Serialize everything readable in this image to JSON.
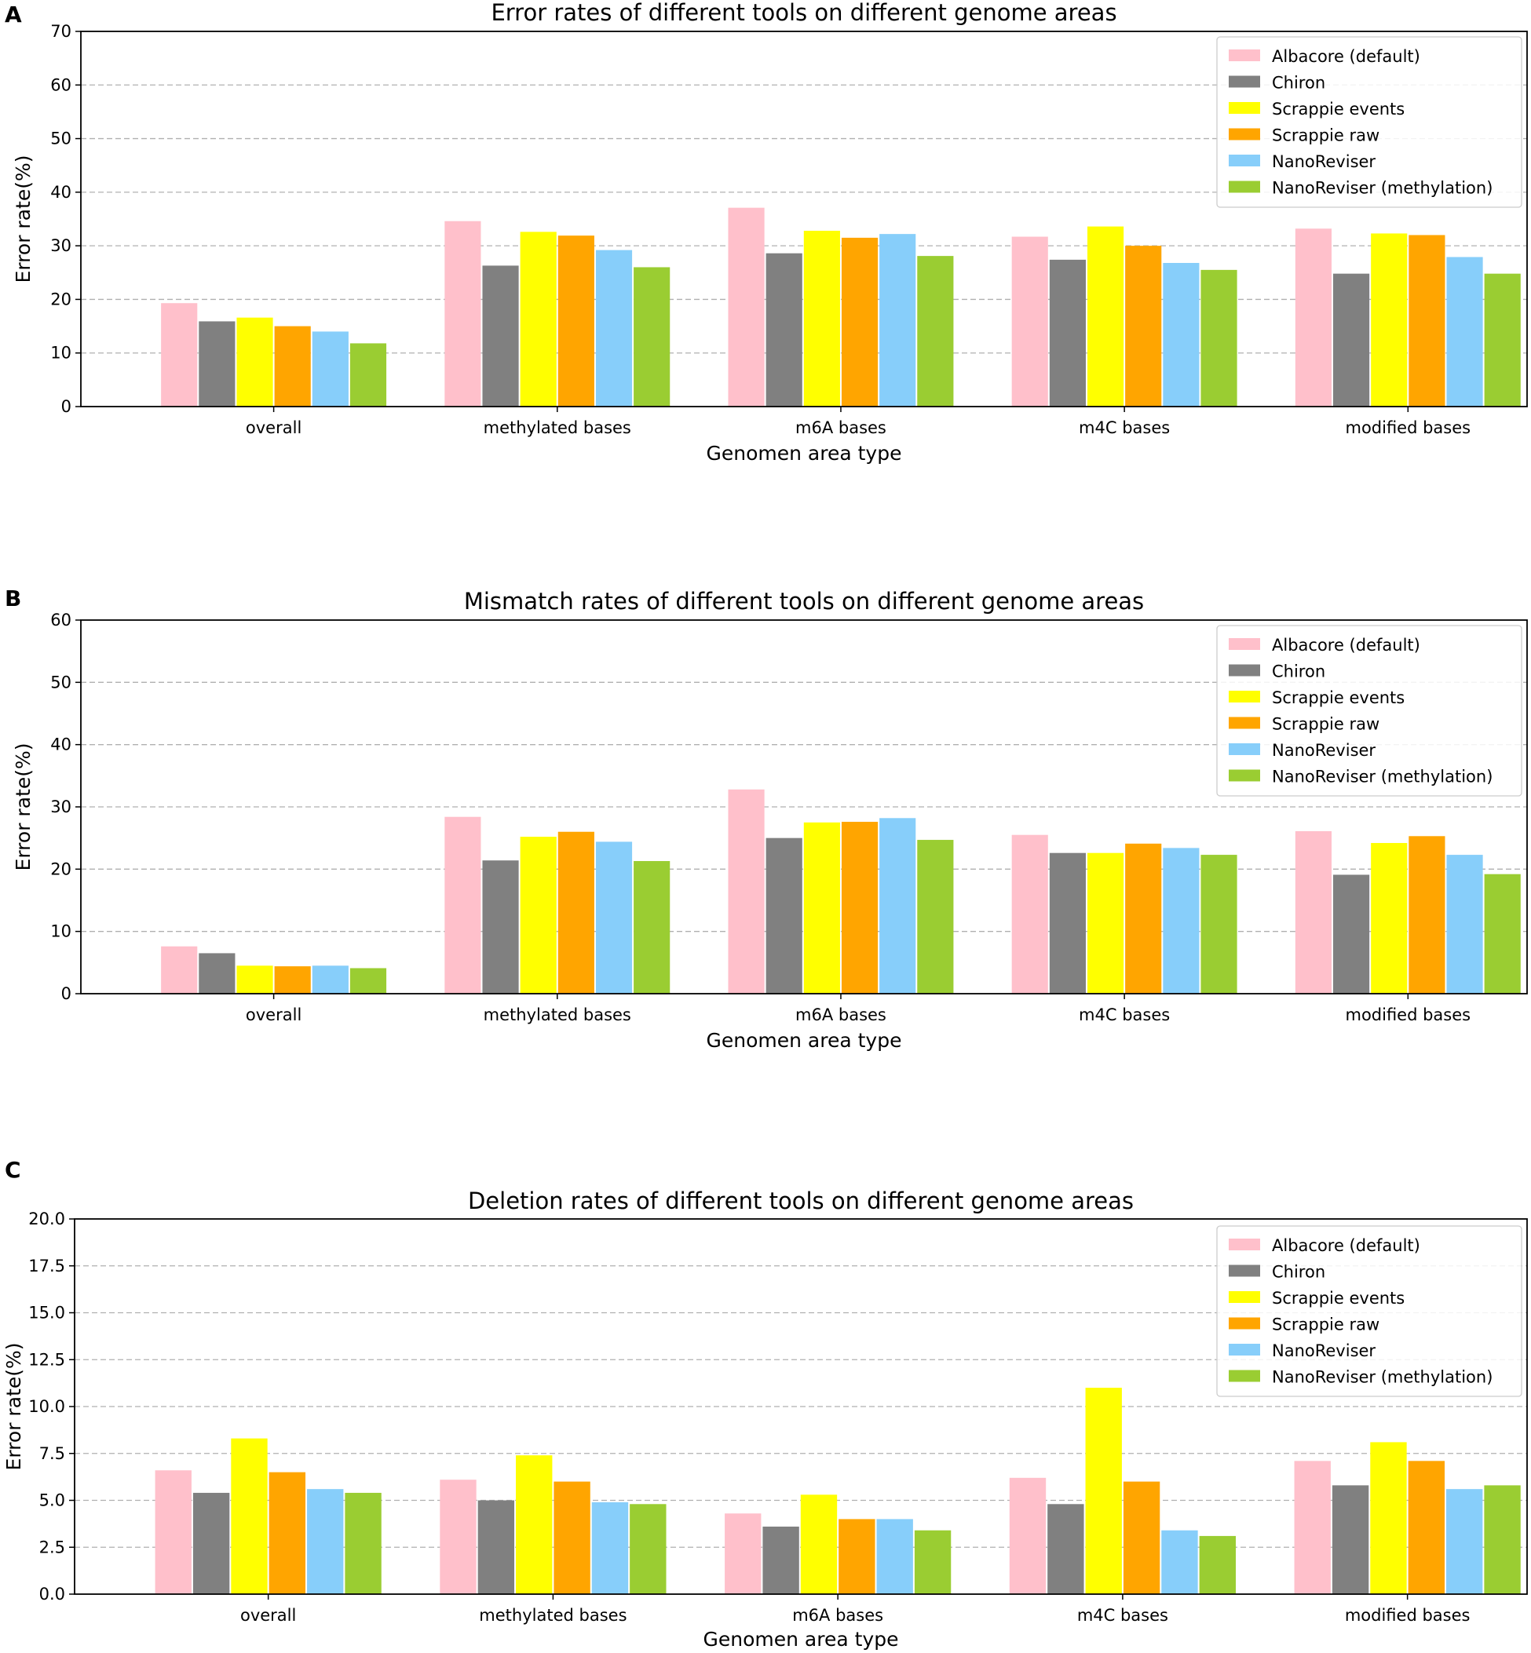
{
  "figure": {
    "panel_letters": [
      "A",
      "B",
      "C"
    ]
  },
  "colors": {
    "albacore": "#ffc0cb",
    "chiron": "#808080",
    "scrappie_events": "#ffff00",
    "scrappie_raw": "#ffa500",
    "nanoreviser": "#87cefa",
    "nanoreviser_methylation": "#9acd32"
  },
  "chart_data": [
    {
      "type": "bar",
      "panel": "A",
      "title": "Error rates of different tools on different genome areas",
      "xlabel": "Genomen area type",
      "ylabel": "Error rate(%)",
      "ylim": [
        0,
        70
      ],
      "yticks": [
        "0",
        "10",
        "20",
        "30",
        "40",
        "50",
        "60",
        "70"
      ],
      "grid": true,
      "legend_position": "top-right",
      "categories": [
        "overall",
        "methylated bases",
        "m6A bases",
        "m4C bases",
        "modified bases"
      ],
      "series": [
        {
          "name": "Albacore (default)",
          "color": "#ffc0cb",
          "values": [
            19.3,
            34.6,
            37.1,
            31.7,
            33.2
          ]
        },
        {
          "name": "Chiron",
          "color": "#808080",
          "values": [
            15.9,
            26.3,
            28.6,
            27.4,
            24.8
          ]
        },
        {
          "name": "Scrappie events",
          "color": "#ffff00",
          "values": [
            16.6,
            32.6,
            32.8,
            33.6,
            32.3
          ]
        },
        {
          "name": "Scrappie raw",
          "color": "#ffa500",
          "values": [
            15.0,
            31.9,
            31.5,
            30.0,
            32.0
          ]
        },
        {
          "name": "NanoReviser",
          "color": "#87cefa",
          "values": [
            14.0,
            29.2,
            32.2,
            26.8,
            27.9
          ]
        },
        {
          "name": "NanoReviser (methylation)",
          "color": "#9acd32",
          "values": [
            11.8,
            26.0,
            28.1,
            25.5,
            24.8
          ]
        }
      ]
    },
    {
      "type": "bar",
      "panel": "B",
      "title": "Mismatch rates of different tools on different genome areas",
      "xlabel": "Genomen area type",
      "ylabel": "Error rate(%)",
      "ylim": [
        0,
        60
      ],
      "yticks": [
        "0",
        "10",
        "20",
        "30",
        "40",
        "50",
        "60"
      ],
      "grid": true,
      "legend_position": "top-right",
      "categories": [
        "overall",
        "methylated bases",
        "m6A bases",
        "m4C bases",
        "modified bases"
      ],
      "series": [
        {
          "name": "Albacore (default)",
          "color": "#ffc0cb",
          "values": [
            7.6,
            28.4,
            32.8,
            25.5,
            26.1
          ]
        },
        {
          "name": "Chiron",
          "color": "#808080",
          "values": [
            6.5,
            21.4,
            25.0,
            22.6,
            19.1
          ]
        },
        {
          "name": "Scrappie events",
          "color": "#ffff00",
          "values": [
            4.5,
            25.2,
            27.5,
            22.6,
            24.2
          ]
        },
        {
          "name": "Scrappie raw",
          "color": "#ffa500",
          "values": [
            4.4,
            26.0,
            27.6,
            24.1,
            25.3
          ]
        },
        {
          "name": "NanoReviser",
          "color": "#87cefa",
          "values": [
            4.5,
            24.4,
            28.2,
            23.4,
            22.3
          ]
        },
        {
          "name": "NanoReviser (methylation)",
          "color": "#9acd32",
          "values": [
            4.1,
            21.3,
            24.7,
            22.3,
            19.2
          ]
        }
      ]
    },
    {
      "type": "bar",
      "panel": "C",
      "title": "Deletion rates of different tools on different genome areas",
      "xlabel": "Genomen area type",
      "ylabel": "Error rate(%)",
      "ylim": [
        0,
        20
      ],
      "yticks": [
        "0.0",
        "2.5",
        "5.0",
        "7.5",
        "10.0",
        "12.5",
        "15.0",
        "17.5",
        "20.0"
      ],
      "grid": true,
      "legend_position": "top-right",
      "categories": [
        "overall",
        "methylated bases",
        "m6A bases",
        "m4C bases",
        "modified bases"
      ],
      "series": [
        {
          "name": "Albacore (default)",
          "color": "#ffc0cb",
          "values": [
            6.6,
            6.1,
            4.3,
            6.2,
            7.1
          ]
        },
        {
          "name": "Chiron",
          "color": "#808080",
          "values": [
            5.4,
            5.0,
            3.6,
            4.8,
            5.8
          ]
        },
        {
          "name": "Scrappie events",
          "color": "#ffff00",
          "values": [
            8.3,
            7.4,
            5.3,
            11.0,
            8.1
          ]
        },
        {
          "name": "Scrappie raw",
          "color": "#ffa500",
          "values": [
            6.5,
            6.0,
            4.0,
            6.0,
            7.1
          ]
        },
        {
          "name": "NanoReviser",
          "color": "#87cefa",
          "values": [
            5.6,
            4.9,
            4.0,
            3.4,
            5.6
          ]
        },
        {
          "name": "NanoReviser (methylation)",
          "color": "#9acd32",
          "values": [
            5.4,
            4.8,
            3.4,
            3.1,
            5.8
          ]
        }
      ]
    }
  ]
}
